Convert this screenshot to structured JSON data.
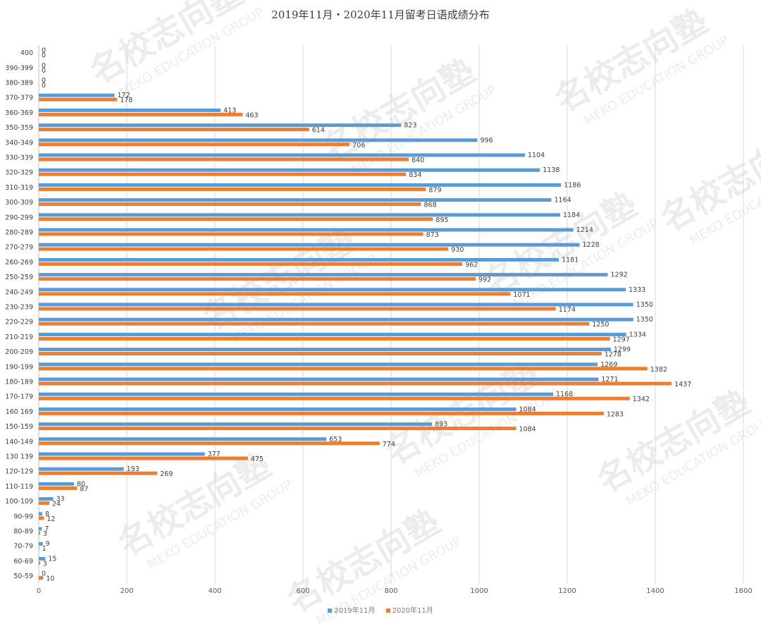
{
  "chart_data": {
    "type": "bar",
    "orientation": "horizontal",
    "title": "2019年11月・2020年11月留考日语成绩分布",
    "categories": [
      "400",
      "390-399",
      "380-389",
      "370-379",
      "360-369",
      "350-359",
      "340-349",
      "330-339",
      "320-329",
      "310-319",
      "300-309",
      "290-299",
      "280-289",
      "270-279",
      "260-269",
      "250-259",
      "240-249",
      "230-239",
      "220-229",
      "210-219",
      "200-209",
      "190-199",
      "180-189",
      "170-179",
      "160-169",
      "150-159",
      "140-149",
      "130-139",
      "120-129",
      "110-119",
      "100-109",
      "90-99",
      "80-89",
      "70-79",
      "60-69",
      "50-59"
    ],
    "category_labels": [
      "400",
      "390-399",
      "380-389",
      "370-379",
      "360-369",
      "350-359",
      "340-349",
      "330-339",
      "320-329",
      "310-319",
      "300-309",
      "290-299",
      "280-289",
      "270-279",
      "260-269",
      "250-259",
      "240-249",
      "230-239",
      "220-229",
      "210-219",
      "200-209",
      "190-199",
      "180-189",
      "170-179",
      "160 169",
      "150-159",
      "140-149",
      "130 139",
      "120-129",
      "110-119",
      "100-109",
      "90-99",
      "80-89",
      "70-79",
      "60-69",
      "50-59"
    ],
    "series": [
      {
        "name": "2019年11月",
        "color": "#5b9bd5",
        "values": [
          0,
          0,
          0,
          172,
          413,
          823,
          996,
          1104,
          1138,
          1186,
          1164,
          1184,
          1214,
          1228,
          1181,
          1292,
          1333,
          1350,
          1350,
          1334,
          1299,
          1269,
          1271,
          1168,
          1084,
          893,
          653,
          377,
          193,
          80,
          33,
          8,
          7,
          9,
          15,
          0
        ]
      },
      {
        "name": "2020年11月",
        "color": "#ed7d31",
        "values": [
          0,
          0,
          0,
          178,
          463,
          614,
          706,
          840,
          834,
          879,
          868,
          895,
          873,
          930,
          962,
          992,
          1071,
          1174,
          1250,
          1297,
          1278,
          1382,
          1437,
          1342,
          1283,
          1084,
          774,
          475,
          269,
          87,
          24,
          12,
          3,
          1,
          3,
          10
        ]
      }
    ],
    "xlim": [
      0,
      1600
    ],
    "xticks": [
      0,
      200,
      400,
      600,
      800,
      1000,
      1200,
      1400,
      1600
    ],
    "xlabel": "",
    "ylabel": "",
    "grid": "vertical",
    "legend_position": "bottom"
  },
  "watermark": {
    "text_cn": "名校志向塾",
    "text_en": "MEKO EDUCATION GROUP"
  }
}
